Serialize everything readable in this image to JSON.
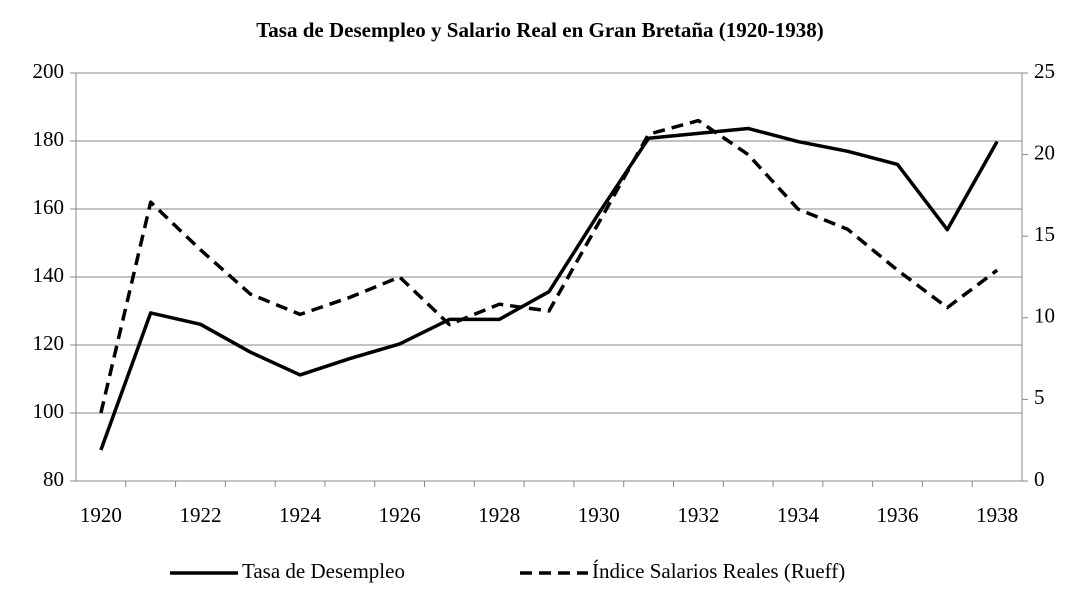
{
  "chart_data": {
    "type": "line",
    "title": "Tasa de Desempleo y Salario Real en Gran Bretaña (1920-1938)",
    "categories": [
      "1920",
      null,
      "1922",
      null,
      "1924",
      null,
      "1926",
      null,
      "1928",
      null,
      "1930",
      null,
      "1932",
      null,
      "1934",
      null,
      "1936",
      null,
      "1938"
    ],
    "series": [
      {
        "name": "Tasa de Desempleo",
        "color": "#000000",
        "dash": "solid",
        "axis": "y2",
        "values": [
          1.9,
          10.3,
          9.6,
          7.9,
          6.5,
          7.5,
          8.4,
          9.9,
          9.9,
          11.6,
          16.4,
          21.0,
          21.3,
          21.6,
          20.8,
          20.2,
          19.4,
          15.4,
          20.8
        ]
      },
      {
        "name": "Índice Salarios Reales (Rueff)",
        "color": "#000000",
        "dash": "dashed",
        "values": [
          100,
          162,
          148,
          135,
          129,
          134,
          140,
          126,
          132,
          130,
          156,
          182,
          186,
          176,
          160,
          154,
          142,
          131,
          142
        ]
      }
    ],
    "ylim": [
      80,
      200
    ],
    "yticks": [
      80,
      100,
      120,
      140,
      160,
      180,
      200
    ],
    "y2lim": [
      0,
      25
    ],
    "y2ticks": [
      0,
      5,
      10,
      15,
      20,
      25
    ],
    "grid": true,
    "legend": "bottom"
  }
}
